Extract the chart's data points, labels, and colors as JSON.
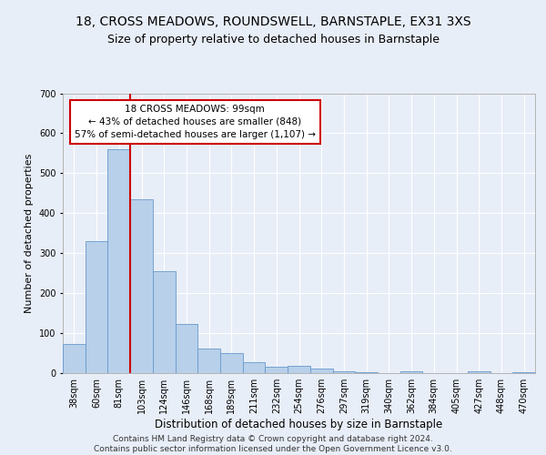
{
  "title1": "18, CROSS MEADOWS, ROUNDSWELL, BARNSTAPLE, EX31 3XS",
  "title2": "Size of property relative to detached houses in Barnstaple",
  "xlabel": "Distribution of detached houses by size in Barnstaple",
  "ylabel": "Number of detached properties",
  "categories": [
    "38sqm",
    "60sqm",
    "81sqm",
    "103sqm",
    "124sqm",
    "146sqm",
    "168sqm",
    "189sqm",
    "211sqm",
    "232sqm",
    "254sqm",
    "276sqm",
    "297sqm",
    "319sqm",
    "340sqm",
    "362sqm",
    "384sqm",
    "405sqm",
    "427sqm",
    "448sqm",
    "470sqm"
  ],
  "values": [
    73,
    330,
    560,
    435,
    255,
    123,
    62,
    50,
    28,
    15,
    18,
    11,
    5,
    3,
    1,
    4,
    0,
    0,
    5,
    0,
    3
  ],
  "bar_color": "#b8d0ea",
  "bar_edge_color": "#6699cc",
  "vline_color": "#cc0000",
  "annotation_text": "18 CROSS MEADOWS: 99sqm\n← 43% of detached houses are smaller (848)\n57% of semi-detached houses are larger (1,107) →",
  "annotation_box_color": "#ffffff",
  "annotation_box_edge_color": "#cc0000",
  "ylim": [
    0,
    700
  ],
  "yticks": [
    0,
    100,
    200,
    300,
    400,
    500,
    600,
    700
  ],
  "footer1": "Contains HM Land Registry data © Crown copyright and database right 2024.",
  "footer2": "Contains public sector information licensed under the Open Government Licence v3.0.",
  "bg_color": "#e8eef8",
  "plot_bg_color": "#e8eef8",
  "title1_fontsize": 10,
  "title2_fontsize": 9,
  "xlabel_fontsize": 8.5,
  "ylabel_fontsize": 8,
  "tick_fontsize": 7,
  "annotation_fontsize": 7.5,
  "footer_fontsize": 6.5
}
